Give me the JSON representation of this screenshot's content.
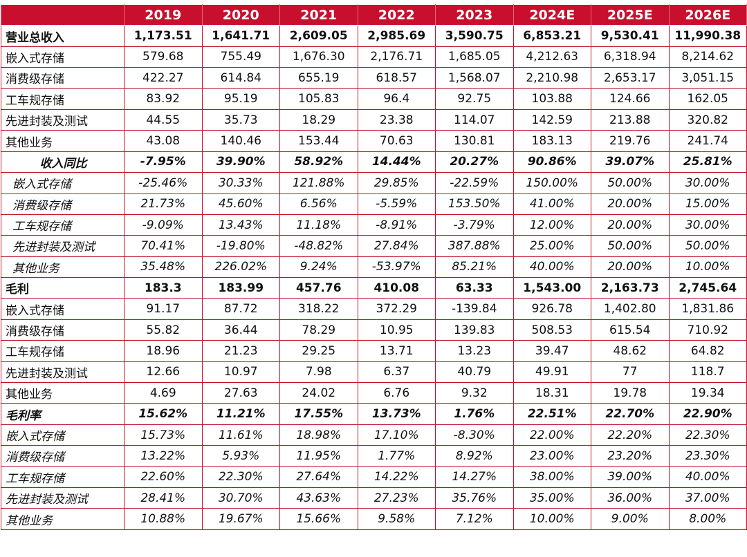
{
  "table": {
    "corner": "",
    "headers": [
      "2019",
      "2020",
      "2021",
      "2022",
      "2023",
      "2024E",
      "2025E",
      "2026E"
    ],
    "rows": [
      {
        "label": "营业总收入",
        "values": [
          "1,173.51",
          "1,641.71",
          "2,609.05",
          "2,985.69",
          "3,590.75",
          "6,853.21",
          "9,530.41",
          "11,990.38"
        ]
      },
      {
        "label": "嵌入式存储",
        "values": [
          "579.68",
          "755.49",
          "1,676.30",
          "2,176.71",
          "1,685.05",
          "4,212.63",
          "6,318.94",
          "8,214.62"
        ]
      },
      {
        "label": "消费级存储",
        "values": [
          "422.27",
          "614.84",
          "655.19",
          "618.57",
          "1,568.07",
          "2,210.98",
          "2,653.17",
          "3,051.15"
        ]
      },
      {
        "label": "工车规存储",
        "values": [
          "83.92",
          "95.19",
          "105.83",
          "96.4",
          "92.75",
          "103.88",
          "124.66",
          "162.05"
        ]
      },
      {
        "label": "先进封装及测试",
        "values": [
          "44.55",
          "35.73",
          "18.29",
          "23.38",
          "114.07",
          "142.59",
          "213.88",
          "320.82"
        ]
      },
      {
        "label": "其他业务",
        "values": [
          "43.08",
          "140.46",
          "153.44",
          "70.63",
          "130.81",
          "183.13",
          "219.76",
          "241.74"
        ]
      },
      {
        "label": "收入同比",
        "values": [
          "-7.95%",
          "39.90%",
          "58.92%",
          "14.44%",
          "20.27%",
          "90.86%",
          "39.07%",
          "25.81%"
        ]
      },
      {
        "label": "嵌入式存储",
        "values": [
          "-25.46%",
          "30.33%",
          "121.88%",
          "29.85%",
          "-22.59%",
          "150.00%",
          "50.00%",
          "30.00%"
        ]
      },
      {
        "label": "消费级存储",
        "values": [
          "21.73%",
          "45.60%",
          "6.56%",
          "-5.59%",
          "153.50%",
          "41.00%",
          "20.00%",
          "15.00%"
        ]
      },
      {
        "label": "工车规存储",
        "values": [
          "-9.09%",
          "13.43%",
          "11.18%",
          "-8.91%",
          "-3.79%",
          "12.00%",
          "20.00%",
          "30.00%"
        ]
      },
      {
        "label": "先进封装及测试",
        "values": [
          "70.41%",
          "-19.80%",
          "-48.82%",
          "27.84%",
          "387.88%",
          "25.00%",
          "50.00%",
          "50.00%"
        ]
      },
      {
        "label": "其他业务",
        "values": [
          "35.48%",
          "226.02%",
          "9.24%",
          "-53.97%",
          "85.21%",
          "40.00%",
          "20.00%",
          "10.00%"
        ]
      },
      {
        "label": "毛利",
        "values": [
          "183.3",
          "183.99",
          "457.76",
          "410.08",
          "63.33",
          "1,543.00",
          "2,163.73",
          "2,745.64"
        ]
      },
      {
        "label": "嵌入式存储",
        "values": [
          "91.17",
          "87.72",
          "318.22",
          "372.29",
          "-139.84",
          "926.78",
          "1,402.80",
          "1,831.86"
        ]
      },
      {
        "label": "消费级存储",
        "values": [
          "55.82",
          "36.44",
          "78.29",
          "10.95",
          "139.83",
          "508.53",
          "615.54",
          "710.92"
        ]
      },
      {
        "label": "工车规存储",
        "values": [
          "18.96",
          "21.23",
          "29.25",
          "13.71",
          "13.23",
          "39.47",
          "48.62",
          "64.82"
        ]
      },
      {
        "label": "先进封装及测试",
        "values": [
          "12.66",
          "10.97",
          "7.98",
          "6.37",
          "40.79",
          "49.91",
          "77",
          "118.7"
        ]
      },
      {
        "label": "其他业务",
        "values": [
          "4.69",
          "27.63",
          "24.02",
          "6.76",
          "9.32",
          "18.31",
          "19.78",
          "19.34"
        ]
      },
      {
        "label": "毛利率",
        "values": [
          "15.62%",
          "11.21%",
          "17.55%",
          "13.73%",
          "1.76%",
          "22.51%",
          "22.70%",
          "22.90%"
        ]
      },
      {
        "label": "嵌入式存储",
        "values": [
          "15.73%",
          "11.61%",
          "18.98%",
          "17.10%",
          "-8.30%",
          "22.00%",
          "22.20%",
          "22.30%"
        ]
      },
      {
        "label": "消费级存储",
        "values": [
          "13.22%",
          "5.93%",
          "11.95%",
          "1.77%",
          "8.92%",
          "23.00%",
          "23.20%",
          "23.30%"
        ]
      },
      {
        "label": "工车规存储",
        "values": [
          "22.60%",
          "22.30%",
          "27.64%",
          "14.22%",
          "14.27%",
          "38.00%",
          "39.00%",
          "40.00%"
        ]
      },
      {
        "label": "先进封装及测试",
        "values": [
          "28.41%",
          "30.70%",
          "43.63%",
          "27.23%",
          "35.76%",
          "35.00%",
          "36.00%",
          "37.00%"
        ]
      },
      {
        "label": "其他业务",
        "values": [
          "10.88%",
          "19.67%",
          "15.66%",
          "9.58%",
          "7.12%",
          "10.00%",
          "9.00%",
          "8.00%"
        ]
      }
    ]
  },
  "colors": {
    "header_bg": "#c8102e",
    "border": "#c0142b",
    "header_text": "#ffffff"
  }
}
